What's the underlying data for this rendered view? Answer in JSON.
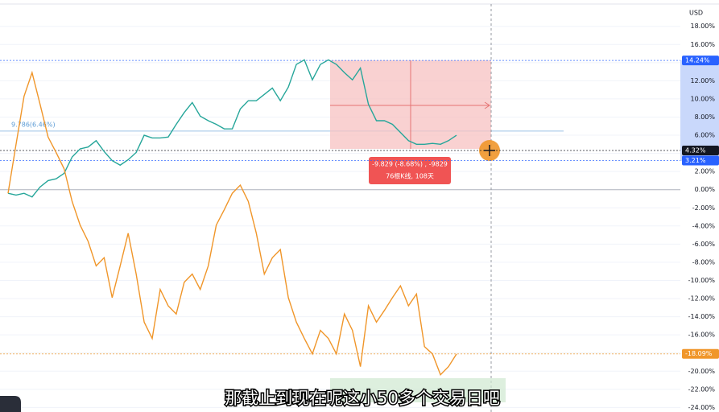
{
  "chart_data": {
    "type": "line",
    "currency": "USD",
    "categories": [
      null,
      null,
      null,
      null,
      null,
      null,
      null,
      null,
      null,
      null,
      null,
      null,
      null,
      null,
      null,
      null,
      null,
      null,
      null,
      null,
      null,
      null,
      null,
      null,
      null,
      null,
      null,
      null,
      null,
      null,
      null,
      null,
      null,
      null,
      null,
      null,
      null,
      null,
      null,
      null,
      null,
      null,
      null,
      null,
      null,
      null,
      null,
      null,
      null,
      null,
      null,
      null,
      null,
      null,
      null,
      null,
      null
    ],
    "series": [
      {
        "color": "#26a69a",
        "values": [
          -0.4,
          -0.6,
          -0.4,
          -0.8,
          0.3,
          1.0,
          1.2,
          1.8,
          3.6,
          4.5,
          4.7,
          5.4,
          4.2,
          3.2,
          2.7,
          3.3,
          4.1,
          6.0,
          5.7,
          5.7,
          5.8,
          7.2,
          8.5,
          9.6,
          8.1,
          7.6,
          7.2,
          6.7,
          6.7,
          8.9,
          9.8,
          9.8,
          10.5,
          11.2,
          9.8,
          11.3,
          13.8,
          14.3,
          12.1,
          13.8,
          14.3,
          13.8,
          12.9,
          12.1,
          13.4,
          9.4,
          7.6,
          7.6,
          7.2,
          6.3,
          5.4,
          5.0,
          5.0,
          5.1,
          5.0,
          5.4,
          6.0
        ]
      },
      {
        "color": "#f0962a",
        "values": [
          -0.4,
          5.0,
          10.3,
          12.9,
          9.4,
          5.8,
          4.1,
          2.3,
          -1.3,
          -3.9,
          -5.7,
          -8.4,
          -7.5,
          -11.9,
          -8.4,
          -4.8,
          -9.3,
          -14.6,
          -16.4,
          -11.0,
          -12.8,
          -13.7,
          -10.2,
          -9.3,
          -11.0,
          -8.4,
          -3.9,
          -2.2,
          -0.4,
          0.5,
          -1.3,
          -4.8,
          -9.3,
          -7.5,
          -6.6,
          -11.9,
          -14.6,
          -16.4,
          -18.1,
          -15.5,
          -16.4,
          -18.1,
          -13.7,
          -15.5,
          -19.5,
          -12.8,
          -14.6,
          -13.3,
          -11.9,
          -10.6,
          -12.8,
          -11.5,
          -17.3,
          -18.1,
          -20.4,
          -19.5,
          -18.1
        ]
      }
    ],
    "ylim": [
      -24.5,
      20.9
    ],
    "yticks": [
      {
        "value": 18,
        "label": "18.00%"
      },
      {
        "value": 16,
        "label": "16.00%"
      },
      {
        "value": 14,
        "label": "14.00%"
      },
      {
        "value": 12,
        "label": "12.00%"
      },
      {
        "value": 10,
        "label": "10.00%"
      },
      {
        "value": 8,
        "label": "8.00%"
      },
      {
        "value": 6,
        "label": "6.00%"
      },
      {
        "value": 4,
        "label": "4.00%"
      },
      {
        "value": 2,
        "label": "2.00%"
      },
      {
        "value": 0,
        "label": "0.00%"
      },
      {
        "value": -2,
        "label": "-2.00%"
      },
      {
        "value": -4,
        "label": "-4.00%"
      },
      {
        "value": -6,
        "label": "-6.00%"
      },
      {
        "value": -8,
        "label": "-8.00%"
      },
      {
        "value": -10,
        "label": "-10.00%"
      },
      {
        "value": -12,
        "label": "-12.00%"
      },
      {
        "value": -14,
        "label": "-14.00%"
      },
      {
        "value": -16,
        "label": "-16.00%"
      },
      {
        "value": -18,
        "label": "-18.00%"
      },
      {
        "value": -20,
        "label": "-20.00%"
      },
      {
        "value": -22,
        "label": "-22.00%"
      },
      {
        "value": -24,
        "label": "-24.00%"
      }
    ],
    "price_labels": [
      {
        "value": 14.24,
        "label": "14.24%",
        "color": "#2962ff"
      },
      {
        "value": 4.32,
        "label": "4.32%",
        "color": "#131722"
      },
      {
        "value": 3.21,
        "label": "3.21%",
        "color": "#2962ff"
      },
      {
        "value": -18.09,
        "label": "-18.09%",
        "color": "#f0962a"
      }
    ],
    "level_label": "9.786(6.46%)",
    "measure_lines": [
      "-9.829 (-8.68%) , -9829",
      "76根K线, 108天"
    ],
    "subtitle": "那截止到现在呢这小50多个交易日吧"
  }
}
